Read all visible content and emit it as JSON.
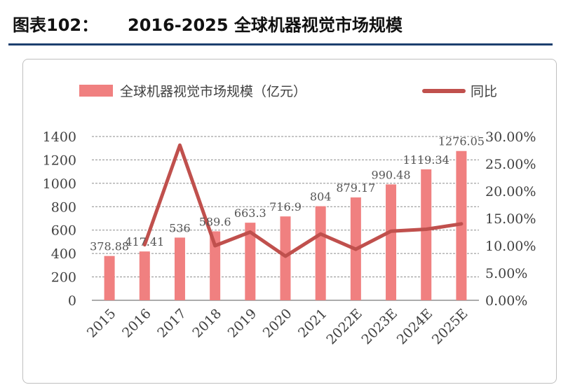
{
  "header": {
    "fig_label": "图表102：",
    "title": "2016-2025 全球机器视觉市场规模"
  },
  "chart_data": {
    "type": "bar+line",
    "categories": [
      "2015",
      "2016",
      "2017",
      "2018",
      "2019",
      "2020",
      "2021",
      "2022E",
      "2023E",
      "2024E",
      "2025E"
    ],
    "bar_series": {
      "name": "全球机器视觉市场规模（亿元）",
      "values": [
        378.88,
        417.41,
        536,
        589.6,
        663.3,
        716.9,
        804,
        879.17,
        990.48,
        1119.34,
        1276.05
      ],
      "labels": [
        "378.88",
        "417.41",
        "536",
        "589.6",
        "663.3",
        "716.9",
        "804",
        "879.17",
        "990.48",
        "1119.34",
        "1276.05"
      ],
      "color": "#f08080"
    },
    "line_series": {
      "name": "同比",
      "values": [
        null,
        0.1017,
        0.2841,
        0.1,
        0.125,
        0.0808,
        0.1215,
        0.0935,
        0.1266,
        0.1301,
        0.14
      ],
      "color": "#c0504d"
    },
    "left_axis": {
      "ylim": [
        0,
        1400
      ],
      "ticks": [
        "0",
        "200",
        "400",
        "600",
        "800",
        "1000",
        "1200",
        "1400"
      ]
    },
    "right_axis": {
      "ylim": [
        0,
        0.3
      ],
      "ticks": [
        "0.00%",
        "5.00%",
        "10.00%",
        "15.00%",
        "20.00%",
        "25.00%",
        "30.00%"
      ]
    },
    "legend_position": "top",
    "grid": "horizontal-dashed"
  }
}
